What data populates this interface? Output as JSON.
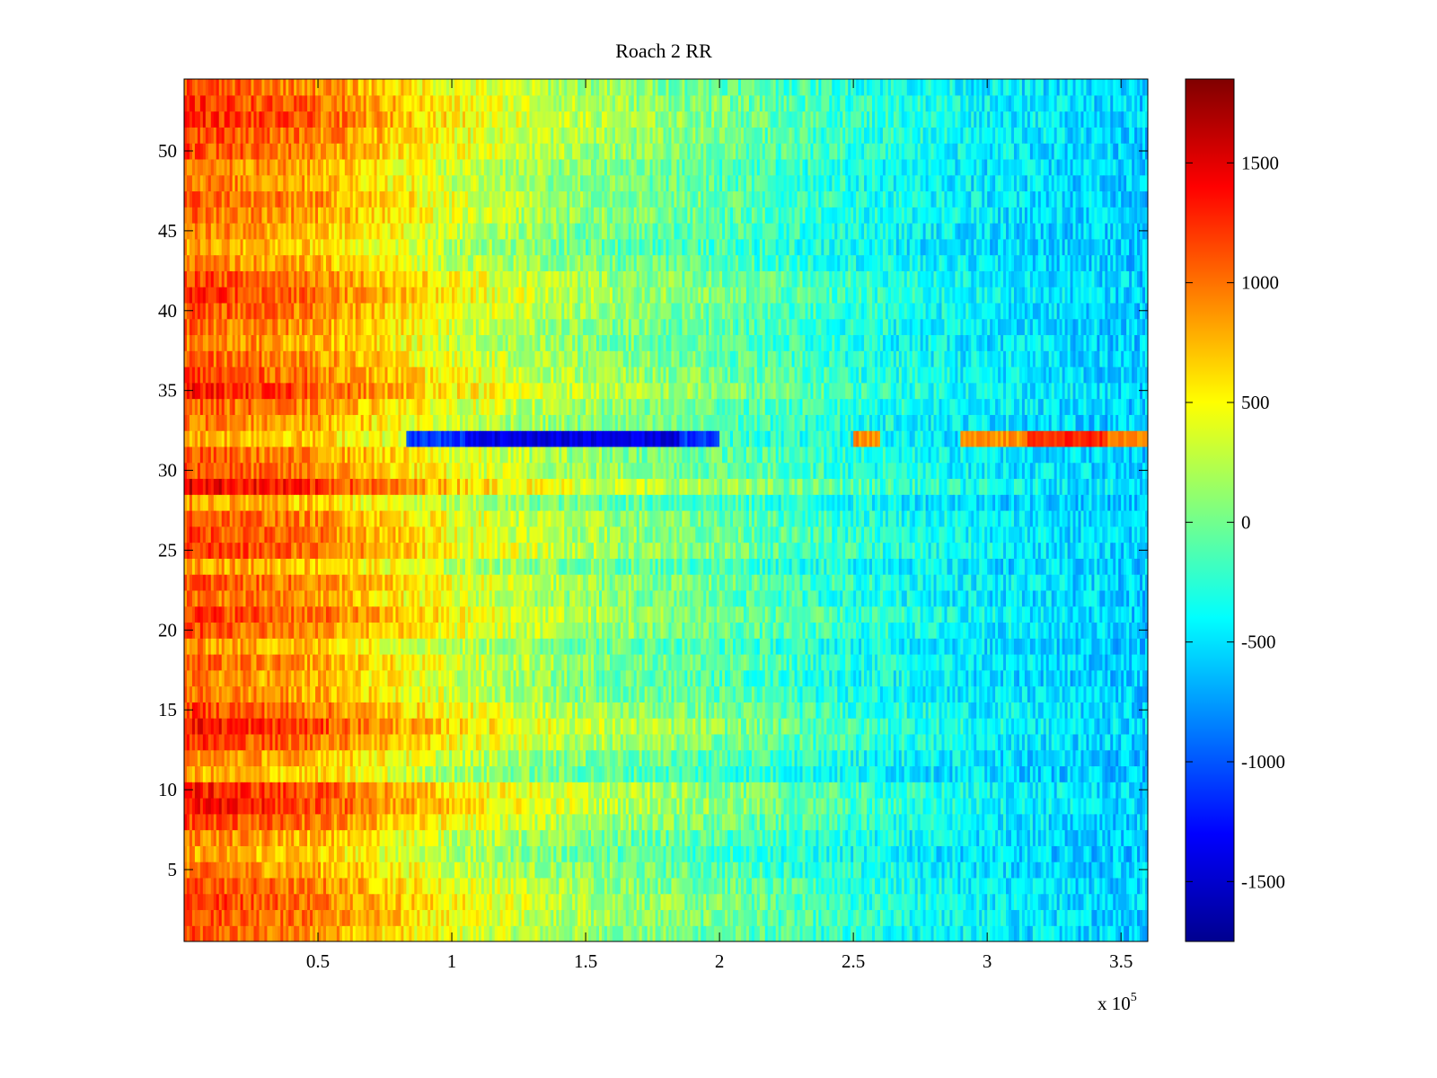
{
  "chart_data": {
    "type": "heatmap",
    "title": "Roach 2 RR",
    "xlabel": "",
    "ylabel": "",
    "x_multiplier_label": "x 10",
    "x_multiplier_exponent": "5",
    "xlim": [
      0,
      3.6
    ],
    "ylim": [
      0.5,
      54.5
    ],
    "x_ticks": [
      0.5,
      1,
      1.5,
      2,
      2.5,
      3,
      3.5
    ],
    "x_tick_labels": [
      "0.5",
      "1",
      "1.5",
      "2",
      "2.5",
      "3",
      "3.5"
    ],
    "y_ticks": [
      5,
      10,
      15,
      20,
      25,
      30,
      35,
      40,
      45,
      50
    ],
    "y_tick_labels": [
      "5",
      "10",
      "15",
      "20",
      "25",
      "30",
      "35",
      "40",
      "45",
      "50"
    ],
    "rows": 54,
    "colormap": "jet",
    "clim": [
      -1750,
      1850
    ],
    "colorbar_ticks": [
      1500,
      1000,
      500,
      0,
      -500,
      -1000,
      -1500
    ],
    "colorbar_tick_labels": [
      "1500",
      "1000",
      "500",
      "0",
      "-500",
      "-1000",
      "-1500"
    ],
    "x_profile_x": [
      0,
      0.5,
      1.0,
      1.5,
      2.0,
      2.5,
      3.0,
      3.6
    ],
    "x_profile_value": [
      900,
      700,
      250,
      0,
      -150,
      -350,
      -500,
      -600
    ],
    "row_offsets": [
      200,
      300,
      350,
      250,
      100,
      -50,
      50,
      300,
      500,
      450,
      -100,
      50,
      350,
      500,
      300,
      100,
      50,
      150,
      0,
      250,
      350,
      150,
      250,
      0,
      350,
      300,
      250,
      -50,
      600,
      250,
      200,
      -50,
      100,
      200,
      450,
      300,
      200,
      100,
      150,
      250,
      350,
      300,
      50,
      -50,
      50,
      150,
      200,
      100,
      100,
      250,
      300,
      400,
      350,
      250
    ],
    "anomalies": [
      {
        "row": 32,
        "x_start": 0.83,
        "x_end": 2.0,
        "value": -1100
      },
      {
        "row": 32,
        "x_start": 1.05,
        "x_end": 1.85,
        "value": -1400
      },
      {
        "row": 32,
        "x_start": 2.5,
        "x_end": 2.6,
        "value": 900
      },
      {
        "row": 32,
        "x_start": 2.9,
        "x_end": 3.6,
        "value": 900
      },
      {
        "row": 32,
        "x_start": 3.15,
        "x_end": 3.45,
        "value": 1250
      }
    ]
  }
}
